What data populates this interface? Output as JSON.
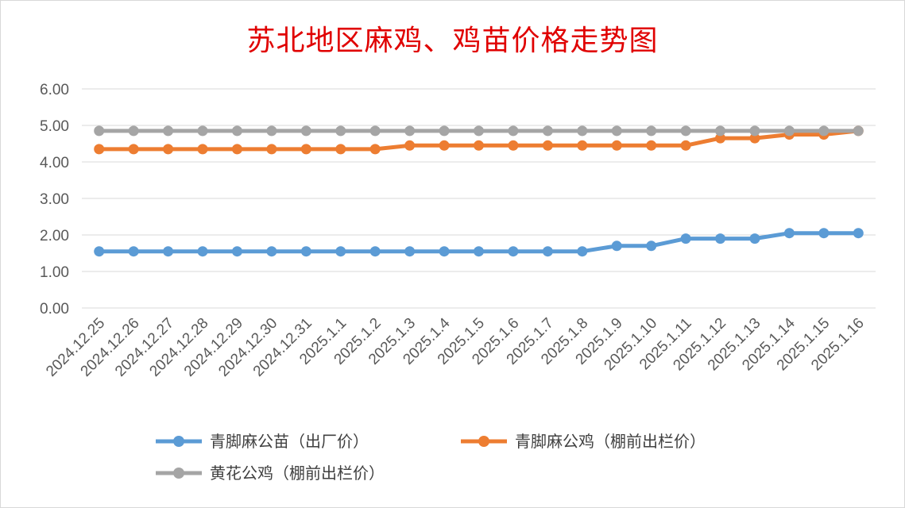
{
  "chart_data": {
    "type": "line",
    "title": "苏北地区麻鸡、鸡苗价格走势图",
    "xlabel": "",
    "ylabel": "",
    "ylim": [
      0,
      6
    ],
    "yticks": [
      "0.00",
      "1.00",
      "2.00",
      "3.00",
      "4.00",
      "5.00",
      "6.00"
    ],
    "grid": true,
    "legend_position": "bottom",
    "categories": [
      "2024.12.25",
      "2024.12.26",
      "2024.12.27",
      "2024.12.28",
      "2024.12.29",
      "2024.12.30",
      "2024.12.31",
      "2025.1.1",
      "2025.1.2",
      "2025.1.3",
      "2025.1.4",
      "2025.1.5",
      "2025.1.6",
      "2025.1.7",
      "2025.1.8",
      "2025.1.9",
      "2025.1.10",
      "2025.1.11",
      "2025.1.12",
      "2025.1.13",
      "2025.1.14",
      "2025.1.15",
      "2025.1.16"
    ],
    "series": [
      {
        "name": "青脚麻公苗（出厂价）",
        "color": "#5b9bd5",
        "values": [
          1.55,
          1.55,
          1.55,
          1.55,
          1.55,
          1.55,
          1.55,
          1.55,
          1.55,
          1.55,
          1.55,
          1.55,
          1.55,
          1.55,
          1.55,
          1.7,
          1.7,
          1.9,
          1.9,
          1.9,
          2.05,
          2.05,
          2.05
        ]
      },
      {
        "name": "青脚麻公鸡（棚前出栏价）",
        "color": "#ed7d31",
        "values": [
          4.35,
          4.35,
          4.35,
          4.35,
          4.35,
          4.35,
          4.35,
          4.35,
          4.35,
          4.45,
          4.45,
          4.45,
          4.45,
          4.45,
          4.45,
          4.45,
          4.45,
          4.45,
          4.65,
          4.65,
          4.75,
          4.75,
          4.85
        ]
      },
      {
        "name": "黄花公鸡（棚前出栏价）",
        "color": "#a5a5a5",
        "values": [
          4.85,
          4.85,
          4.85,
          4.85,
          4.85,
          4.85,
          4.85,
          4.85,
          4.85,
          4.85,
          4.85,
          4.85,
          4.85,
          4.85,
          4.85,
          4.85,
          4.85,
          4.85,
          4.85,
          4.85,
          4.85,
          4.85,
          4.85
        ]
      }
    ]
  }
}
